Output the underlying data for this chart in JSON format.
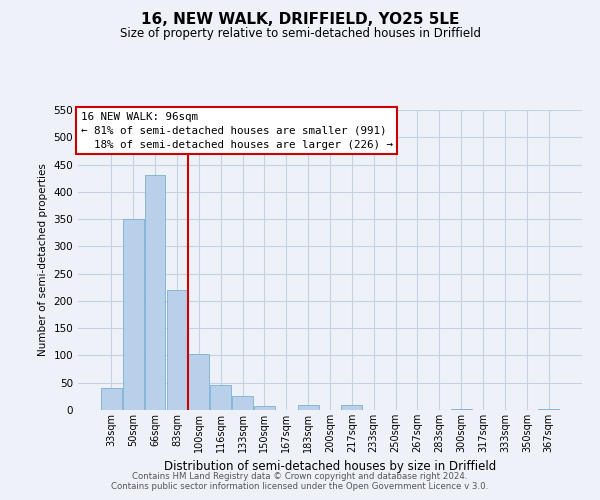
{
  "title": "16, NEW WALK, DRIFFIELD, YO25 5LE",
  "subtitle": "Size of property relative to semi-detached houses in Driffield",
  "xlabel": "Distribution of semi-detached houses by size in Driffield",
  "ylabel": "Number of semi-detached properties",
  "bin_labels": [
    "33sqm",
    "50sqm",
    "66sqm",
    "83sqm",
    "100sqm",
    "116sqm",
    "133sqm",
    "150sqm",
    "167sqm",
    "183sqm",
    "200sqm",
    "217sqm",
    "233sqm",
    "250sqm",
    "267sqm",
    "283sqm",
    "300sqm",
    "317sqm",
    "333sqm",
    "350sqm",
    "367sqm"
  ],
  "bar_values": [
    40,
    350,
    430,
    220,
    103,
    45,
    26,
    8,
    0,
    10,
    0,
    10,
    0,
    0,
    0,
    0,
    2,
    0,
    0,
    0,
    2
  ],
  "bar_color": "#b8d0ea",
  "bar_edge_color": "#7aafd4",
  "vline_color": "#cc0000",
  "vline_index": 3.5,
  "ylim": [
    0,
    550
  ],
  "yticks": [
    0,
    50,
    100,
    150,
    200,
    250,
    300,
    350,
    400,
    450,
    500,
    550
  ],
  "annotation_title": "16 NEW WALK: 96sqm",
  "annotation_line1": "← 81% of semi-detached houses are smaller (991)",
  "annotation_line2": "  18% of semi-detached houses are larger (226) →",
  "footer1": "Contains HM Land Registry data © Crown copyright and database right 2024.",
  "footer2": "Contains public sector information licensed under the Open Government Licence v 3.0.",
  "bg_color": "#eef2f8",
  "grid_color": "#c5d0e0"
}
